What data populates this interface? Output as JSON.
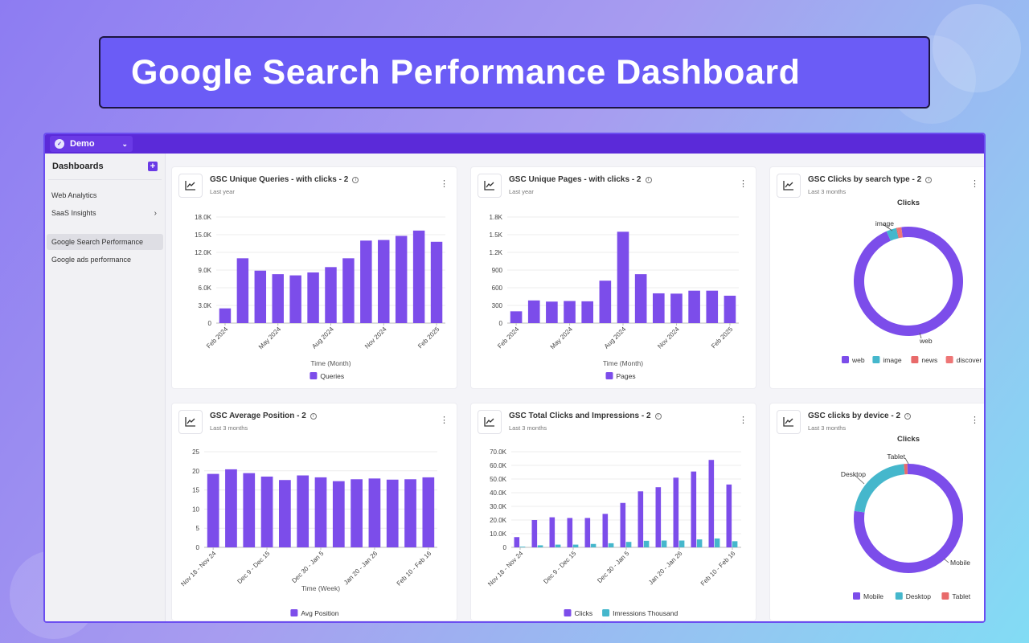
{
  "hero": {
    "title": "Google Search Performance Dashboard"
  },
  "topbar": {
    "workspace": "Demo",
    "logo_icon": "workspace-logo-icon"
  },
  "sidebar": {
    "title": "Dashboards",
    "add_icon": "plus-icon",
    "items": [
      {
        "label": "Web Analytics"
      },
      {
        "label": "SaaS Insights",
        "has_children": true
      },
      {
        "label": "Google Search Performance",
        "active": true
      },
      {
        "label": "Google ads performance"
      }
    ]
  },
  "colors": {
    "purple": "#7c4dea",
    "teal": "#45b7cc",
    "red": "#e86a6a",
    "salmon": "#ee7676",
    "accent": "#5b2ad9"
  },
  "cards": [
    {
      "title": "GSC Unique Queries - with clicks - 2",
      "subtitle": "Last year",
      "icon": "line-chart-icon"
    },
    {
      "title": "GSC Unique Pages - with clicks - 2",
      "subtitle": "Last year",
      "icon": "line-chart-icon"
    },
    {
      "title": "GSC Clicks by search type - 2",
      "subtitle": "Last 3 months",
      "icon": "line-chart-icon"
    },
    {
      "title": "GSC Average Position - 2",
      "subtitle": "Last 3 months",
      "icon": "line-chart-icon"
    },
    {
      "title": "GSC Total Clicks and Impressions - 2",
      "subtitle": "Last 3 months",
      "icon": "line-chart-icon"
    },
    {
      "title": "GSC clicks by device - 2",
      "subtitle": "Last 3 months",
      "icon": "line-chart-icon"
    }
  ],
  "chart_data": [
    {
      "type": "bar",
      "xlabel": "Time (Month)",
      "x_tick_labels": [
        "Feb 2024",
        "May 2024",
        "Aug 2024",
        "Nov 2024",
        "Feb 2025"
      ],
      "y_tick_labels": [
        "0",
        "3.0K",
        "6.0K",
        "9.0K",
        "12.0K",
        "15.0K",
        "18.0K"
      ],
      "ylim": [
        0,
        18000
      ],
      "series": [
        {
          "name": "Queries",
          "values": [
            2500,
            11000,
            8900,
            8300,
            8100,
            8600,
            9500,
            11000,
            14000,
            14100,
            14800,
            15700,
            13800
          ]
        }
      ]
    },
    {
      "type": "bar",
      "xlabel": "Time (Month)",
      "x_tick_labels": [
        "Feb 2024",
        "May 2024",
        "Aug 2024",
        "Nov 2024",
        "Feb 2025"
      ],
      "y_tick_labels": [
        "0",
        "300",
        "600",
        "900",
        "1.2K",
        "1.5K",
        "1.8K"
      ],
      "ylim": [
        0,
        1800
      ],
      "series": [
        {
          "name": "Pages",
          "values": [
            200,
            385,
            365,
            375,
            370,
            720,
            1550,
            830,
            505,
            500,
            550,
            550,
            465
          ]
        }
      ]
    },
    {
      "type": "pie",
      "title": "Clicks",
      "categories": [
        "web",
        "image",
        "news",
        "discover"
      ],
      "values": [
        95.5,
        3.0,
        0.3,
        1.2
      ],
      "outer_labels": [
        "web",
        "image"
      ]
    },
    {
      "type": "bar",
      "xlabel": "Time (Week)",
      "x_tick_labels": [
        "Nov 18 - Nov 24",
        "Dec 9 - Dec 15",
        "Dec 30 - Jan 5",
        "Jan 20 - Jan 26",
        "Feb 10 - Feb 16"
      ],
      "y_tick_labels": [
        "0",
        "5",
        "10",
        "15",
        "20",
        "25"
      ],
      "ylim": [
        0,
        25
      ],
      "series": [
        {
          "name": "Avg Position",
          "values": [
            19.2,
            20.4,
            19.4,
            18.5,
            17.6,
            18.8,
            18.3,
            17.3,
            17.8,
            18.0,
            17.7,
            17.8,
            18.3
          ]
        }
      ]
    },
    {
      "type": "bar",
      "xlabel": "",
      "x_tick_labels": [
        "Nov 18 - Nov 24",
        "Dec 9 - Dec 15",
        "Dec 30 - Jan 5",
        "Jan 20 - Jan 26",
        "Feb 10 - Feb 16"
      ],
      "y_tick_labels": [
        "0",
        "10.0K",
        "20.0K",
        "30.0K",
        "40.0K",
        "50.0K",
        "60.0K",
        "70.0K"
      ],
      "ylim": [
        0,
        70000
      ],
      "series": [
        {
          "name": "Clicks",
          "values": [
            7500,
            20000,
            22000,
            21500,
            21500,
            24500,
            32500,
            41000,
            44000,
            51000,
            55500,
            64000,
            46000
          ]
        },
        {
          "name": "Imressions Thousand",
          "values": [
            500,
            1500,
            2000,
            2000,
            2500,
            3000,
            4000,
            4800,
            5000,
            5000,
            5800,
            6500,
            4500
          ]
        }
      ]
    },
    {
      "type": "pie",
      "title": "Clicks",
      "categories": [
        "Mobile",
        "Desktop",
        "Tablet"
      ],
      "values": [
        77.5,
        21.5,
        1.0
      ],
      "outer_labels": [
        "Tablet",
        "Desktop",
        "Mobile"
      ]
    }
  ]
}
